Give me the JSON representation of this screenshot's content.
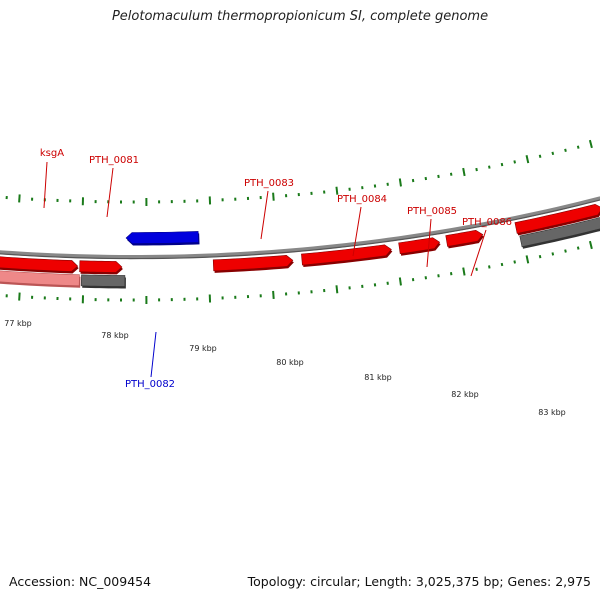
{
  "header": {
    "title": "Pelotomaculum thermopropionicum SI, complete genome"
  },
  "footer": {
    "accession": "Accession: NC_009454",
    "topology": "Topology: circular; Length: 3,025,375 bp; Genes: 2,975"
  },
  "colors": {
    "forward_gene": "#ee0000",
    "reverse_gene": "#0000dd",
    "highlight_gene": "#ee8888",
    "rna_gene": "#666666",
    "backbone": "#888888",
    "ticks": "#1a7a1a",
    "forward_label": "#cc0000",
    "reverse_label": "#0000cc"
  },
  "scale": {
    "tick_labels": [
      "77 kbp",
      "78 kbp",
      "79 kbp",
      "80 kbp",
      "81 kbp",
      "82 kbp",
      "83 kbp"
    ]
  },
  "genes": [
    {
      "label": "ksgA",
      "type": "highlight",
      "strand": "forward"
    },
    {
      "label": "PTH_0081",
      "type": "rna",
      "strand": "forward"
    },
    {
      "label": "",
      "type": "cds",
      "strand": "forward"
    },
    {
      "label": "",
      "type": "cds",
      "strand": "forward"
    },
    {
      "label": "PTH_0082",
      "type": "cds",
      "strand": "reverse"
    },
    {
      "label": "",
      "type": "cds",
      "strand": "forward"
    },
    {
      "label": "PTH_0083",
      "type": "cds",
      "strand": "forward"
    },
    {
      "label": "PTH_0084",
      "type": "cds",
      "strand": "forward"
    },
    {
      "label": "PTH_0085",
      "type": "cds",
      "strand": "forward"
    },
    {
      "label": "PTH_0086",
      "type": "cds",
      "strand": "forward"
    },
    {
      "label": "",
      "type": "rna",
      "strand": "forward"
    },
    {
      "label": "",
      "type": "cds",
      "strand": "forward"
    }
  ]
}
